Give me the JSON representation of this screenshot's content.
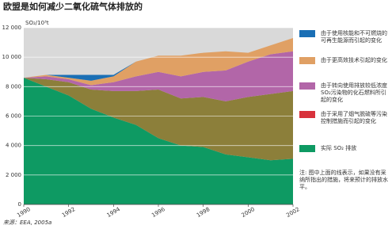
{
  "chart_data": {
    "type": "stacked_area",
    "title": "欧盟是如何减少二氧化硫气体排放的",
    "y_label": "SO₂/10³t",
    "x": [
      1990,
      1991,
      1992,
      1993,
      1994,
      1995,
      1996,
      1997,
      1998,
      1999,
      2000,
      2001,
      2002
    ],
    "xticks": [
      1990,
      1992,
      1994,
      1996,
      1998,
      2000,
      2002
    ],
    "ylim": [
      0,
      12000
    ],
    "yticks": [
      0,
      {
        "value": 2000,
        "label": "2 000"
      },
      {
        "value": 4000,
        "label": "4 000"
      },
      {
        "value": 6000,
        "label": "6 000"
      },
      {
        "value": 8000,
        "label": "8 000"
      },
      {
        "value": 10000,
        "label": "10 000"
      },
      {
        "value": 12000,
        "label": "12 000"
      }
    ],
    "grid": true,
    "series": [
      {
        "name": "实际 SO₂ 排放",
        "color": "#0e9a63",
        "legend_color": "#0e9a63",
        "values": [
          8600,
          8000,
          7400,
          6500,
          5900,
          5400,
          4500,
          4000,
          3900,
          3400,
          3200,
          3000,
          3100
        ]
      },
      {
        "name": "由于采用了烟气脱硫等污染控制措施而引起的变化",
        "color": "#8c7f3a",
        "legend_color": "#d8323c",
        "values": [
          0,
          500,
          900,
          1300,
          1800,
          2300,
          3300,
          3200,
          3400,
          3600,
          4100,
          4500,
          4600
        ]
      },
      {
        "name": "由于转向使用排放较低浓度SO₂污染物的化石燃料所引起的变化",
        "color": "#b266a8",
        "legend_color": "#b266a8",
        "values": [
          0,
          200,
          200,
          300,
          600,
          1000,
          1200,
          1500,
          1700,
          2100,
          2400,
          2700,
          2700
        ]
      },
      {
        "name": "由于更高效技术引起的变化",
        "color": "#e0a064",
        "legend_color": "#e0a064",
        "values": [
          0,
          100,
          100,
          300,
          400,
          1000,
          1100,
          1400,
          1300,
          1300,
          600,
          600,
          900
        ]
      },
      {
        "name": "由于使用核能和不可燃烧的可再生能源而引起的变化",
        "color": "#1a6fb5",
        "legend_color": "#1a6fb5",
        "values": [
          0,
          0,
          200,
          400,
          100,
          0,
          0,
          0,
          0,
          0,
          0,
          0,
          0
        ]
      }
    ],
    "note": "注: 图中上面的线表示，如果没有采纳所指出的措施，将来预计的排放水平。",
    "source": "来源：EEA, 2005a"
  }
}
